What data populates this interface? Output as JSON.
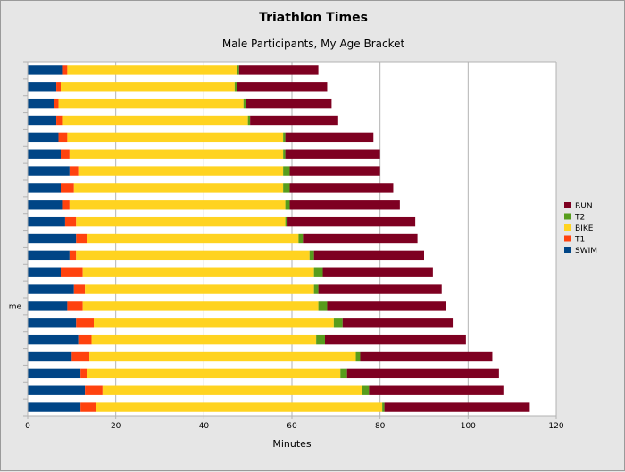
{
  "chart_data": {
    "type": "bar",
    "orientation": "horizontal",
    "stacked": true,
    "title": "Triathlon Times",
    "subtitle": "Male Participants, My Age Bracket",
    "xlabel": "Minutes",
    "ylabel": "",
    "xlim": [
      0,
      120
    ],
    "xticks": [
      0,
      20,
      40,
      60,
      80,
      100,
      120
    ],
    "grid": "vertical",
    "legend_position": "right",
    "categories": [
      "",
      "",
      "",
      "",
      "",
      "",
      "",
      "",
      "",
      "",
      "",
      "",
      "",
      "",
      "me",
      "",
      "",
      "",
      "",
      "",
      ""
    ],
    "series": [
      {
        "name": "SWIM",
        "color": "#004586",
        "values": [
          8,
          6.5,
          6,
          6.5,
          7,
          7.5,
          9.5,
          7.5,
          8,
          8.5,
          11,
          9.5,
          7.5,
          10.5,
          9,
          11,
          11.5,
          10,
          12,
          13,
          12
        ]
      },
      {
        "name": "T1",
        "color": "#ff420e",
        "values": [
          1,
          1,
          1,
          1.5,
          2,
          2,
          2,
          3,
          1.5,
          2.5,
          2.5,
          1.5,
          5,
          2.5,
          3.5,
          4,
          3,
          4,
          1.5,
          4,
          3.5
        ]
      },
      {
        "name": "BIKE",
        "color": "#ffd320",
        "values": [
          38.5,
          39.5,
          42,
          42,
          49,
          48.5,
          46.5,
          47.5,
          49,
          47.5,
          48,
          53,
          52.5,
          52,
          53.5,
          54.5,
          51,
          60.5,
          57.5,
          59,
          65
        ]
      },
      {
        "name": "T2",
        "color": "#579d1c",
        "values": [
          0.5,
          0.5,
          0.5,
          0.5,
          0.5,
          0.5,
          1.5,
          1.5,
          1,
          0.5,
          1,
          1,
          2,
          1,
          2,
          2,
          2,
          1,
          1.5,
          1.5,
          0.5
        ]
      },
      {
        "name": "RUN",
        "color": "#7e0021",
        "values": [
          18,
          20.5,
          19.5,
          20,
          20,
          21.5,
          20.5,
          23.5,
          25,
          29,
          26,
          25,
          25,
          28,
          27,
          25,
          32,
          30,
          34.5,
          30.5,
          33
        ]
      }
    ]
  }
}
